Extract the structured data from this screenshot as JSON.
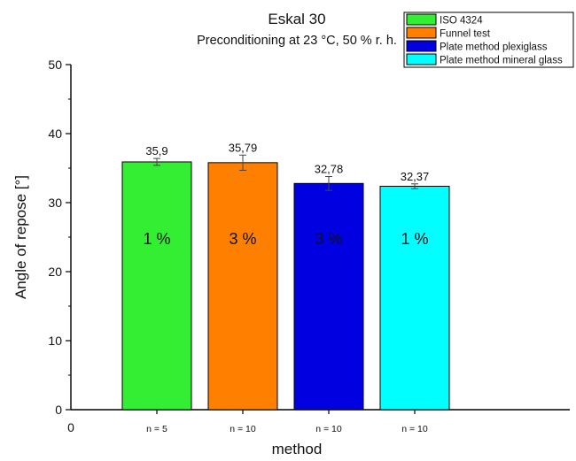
{
  "chart_data": {
    "type": "bar",
    "title": "Eskal 30",
    "subtitle": "Preconditioning at 23 °C, 50 % r. h.",
    "xlabel": "method",
    "ylabel": "Angle of repose [°]",
    "ylim": [
      0,
      50
    ],
    "yticks": [
      "0",
      "10",
      "20",
      "30",
      "40",
      "50"
    ],
    "x_origin_label": "0",
    "categories": [
      "n = 5",
      "n = 10",
      "n = 10",
      "n = 10"
    ],
    "values": [
      35.9,
      35.79,
      32.78,
      32.37
    ],
    "value_labels": [
      "35,9",
      "35,79",
      "32,78",
      "32,37"
    ],
    "errors": [
      0.5,
      1.1,
      1.0,
      0.35
    ],
    "inner_labels": [
      "1 %",
      "3 %",
      "3 %",
      "1 %"
    ],
    "series_names": [
      "ISO 4324",
      "Funnel test",
      "Plate method plexiglass",
      "Plate method mineral glass"
    ],
    "colors": [
      "#33ee33",
      "#ff8000",
      "#0000e0",
      "#00ffff"
    ],
    "legend_position": "top-right",
    "grid": false
  }
}
